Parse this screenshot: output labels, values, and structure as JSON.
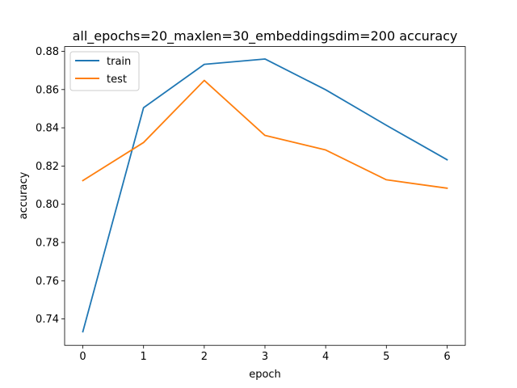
{
  "chart_data": {
    "type": "line",
    "title": "all_epochs=20_maxlen=30_embeddingsdim=200 accuracy",
    "xlabel": "epoch",
    "ylabel": "accuracy",
    "x": [
      0,
      1,
      2,
      3,
      4,
      5,
      6
    ],
    "xlim": [
      -0.3,
      6.3
    ],
    "ylim": [
      0.7262,
      0.8825
    ],
    "xticks": [
      0,
      1,
      2,
      3,
      4,
      5,
      6
    ],
    "yticks": [
      0.74,
      0.76,
      0.78,
      0.8,
      0.82,
      0.84,
      0.86,
      0.88
    ],
    "xtick_labels": [
      "0",
      "1",
      "2",
      "3",
      "4",
      "5",
      "6"
    ],
    "ytick_labels": [
      "0.74",
      "0.76",
      "0.78",
      "0.80",
      "0.82",
      "0.84",
      "0.86",
      "0.88"
    ],
    "grid": false,
    "legend_position": "upper-left",
    "series": [
      {
        "name": "train",
        "color": "#1f77b4",
        "values": [
          0.7333,
          0.8505,
          0.8732,
          0.876,
          0.8599,
          0.8413,
          0.8233
        ]
      },
      {
        "name": "test",
        "color": "#ff7f0e",
        "values": [
          0.8124,
          0.8323,
          0.8648,
          0.836,
          0.8284,
          0.8128,
          0.8084
        ]
      }
    ]
  }
}
